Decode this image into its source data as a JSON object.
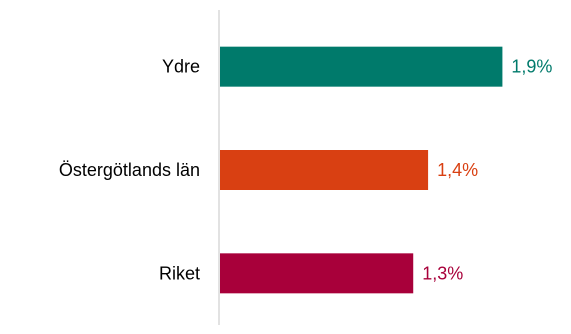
{
  "chart_data": {
    "type": "bar",
    "orientation": "horizontal",
    "categories": [
      "Ydre",
      "Östergötlands län",
      "Riket"
    ],
    "values": [
      1.9,
      1.4,
      1.3
    ],
    "value_labels": [
      "1,9%",
      "1,4%",
      "1,3%"
    ],
    "colors": [
      "#007a6b",
      "#d94012",
      "#a8003a"
    ],
    "title": "",
    "xlabel": "",
    "ylabel": "",
    "xlim": [
      0,
      2.2
    ],
    "grid": false,
    "legend": "none"
  }
}
